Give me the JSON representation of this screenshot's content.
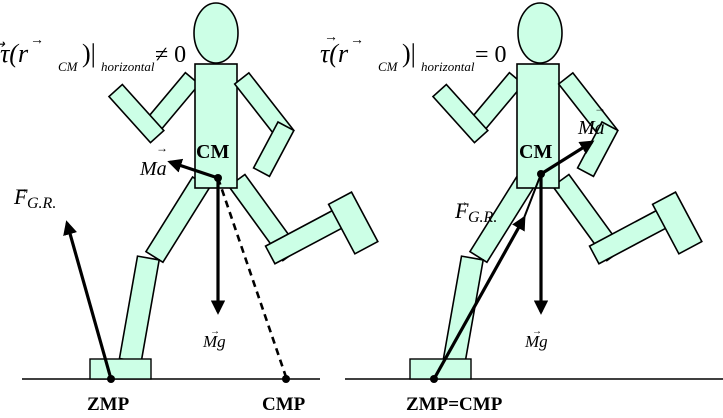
{
  "left_panel": {
    "torque_prefix": "τ(r",
    "torque_subscript_cm": "CM",
    "torque_close": ")|",
    "torque_subscript_h": "horizontal",
    "torque_relation": "≠ 0",
    "force_label": "F",
    "force_subscript": "G.R.",
    "accel_label": "Ma",
    "gravity_label": "Mg",
    "cm_label": "CM",
    "zmp_label": "ZMP",
    "cmp_label": "CMP"
  },
  "right_panel": {
    "torque_prefix": "τ(r",
    "torque_subscript_cm": "CM",
    "torque_close": ")|",
    "torque_subscript_h": "horizontal",
    "torque_relation": "= 0",
    "force_label": "F",
    "force_subscript": "G.R.",
    "accel_label": "Ma",
    "gravity_label": "Mg",
    "cm_label": "CM",
    "zmp_cmp_label": "ZMP=CMP"
  },
  "colors": {
    "figure_fill": "#ccffe6",
    "outline": "#000000"
  }
}
